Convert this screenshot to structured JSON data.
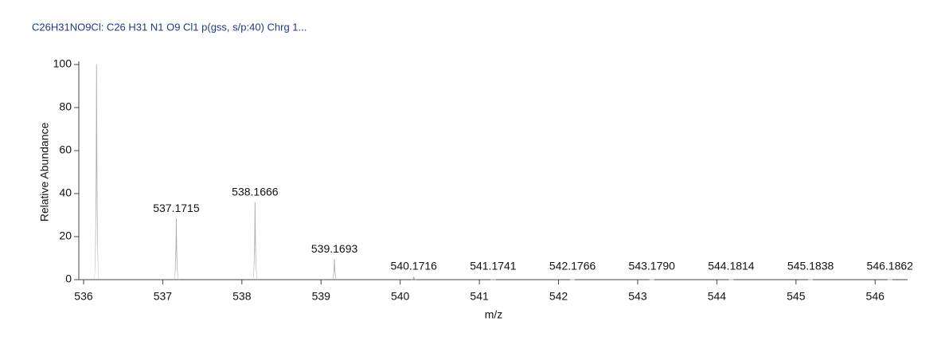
{
  "chart_data": {
    "type": "spectrum",
    "title": "C26H31NO9Cl: C26 H31 N1 O9 Cl1 p(gss, s/p:40) Chrg 1...",
    "xlabel": "m/z",
    "ylabel": "Relative Abundance",
    "x": [
      536.1644,
      537.1715,
      538.1666,
      539.1693,
      540.1716,
      541.1741,
      542.1766,
      543.179,
      544.1814,
      545.1838,
      546.1862
    ],
    "values": [
      100,
      28.5,
      36,
      9.6,
      1.3,
      0.2,
      0,
      0,
      0,
      0,
      0
    ],
    "x_labels": [
      null,
      "537.1715",
      "538.1666",
      "539.1693",
      "540.1716",
      "541.1741",
      "542.1766",
      "543.1790",
      "544.1814",
      "545.1838",
      "546.1862"
    ],
    "color": "#b0b0b0",
    "xlim": [
      535.94,
      546.41
    ],
    "ylim": [
      0,
      100
    ],
    "xticks": [
      536,
      537,
      538,
      539,
      540,
      541,
      542,
      543,
      544,
      545,
      546
    ],
    "yticks": [
      0,
      20,
      40,
      60,
      80,
      100
    ]
  }
}
